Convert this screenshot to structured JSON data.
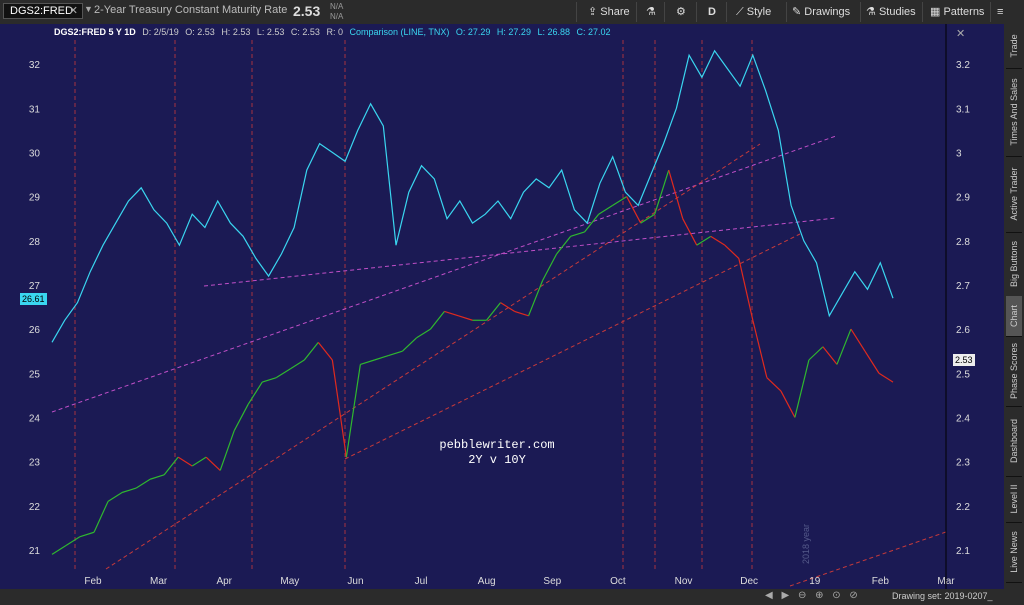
{
  "toolbar": {
    "symbol": "DGS2:FRED",
    "symbol_close": "✕",
    "description": "2-Year Treasury Constant Maturity Rate",
    "last": "2.53",
    "na1": "N/A",
    "na2": "N/A",
    "share": "Share",
    "period": "D",
    "style": "Style",
    "drawings": "Drawings",
    "studies": "Studies",
    "patterns": "Patterns"
  },
  "legend": {
    "main": "DGS2:FRED 5 Y 1D",
    "date": "D: 2/5/19",
    "o": "O: 2.53",
    "h": "H: 2.53",
    "l": "L: 2.53",
    "c": "C: 2.53",
    "r": "R: 0",
    "comp": "Comparison (LINE, TNX)",
    "co": "O: 27.29",
    "ch": "H: 27.29",
    "cl": "L: 26.88",
    "cc": "C: 27.02"
  },
  "colors": {
    "bg": "#1b1a54",
    "cyan": "#3ad6f0",
    "up": "#2fb82f",
    "down": "#e02a1e",
    "magenta": "#c04fc8",
    "redline": "#c83a3a"
  },
  "tags": {
    "left": "26.61",
    "right": "2.53"
  },
  "annotations": {
    "watermark1": "pebblewriter.com",
    "watermark2": "2Y v 10Y",
    "year_label": "2018 year"
  },
  "chart_data": {
    "type": "line",
    "left_axis": {
      "ticks": [
        "32",
        "31",
        "30",
        "29",
        "28",
        "27",
        "26",
        "25",
        "24",
        "23",
        "22",
        "21"
      ],
      "range": [
        20.5,
        32.5
      ]
    },
    "right_axis": {
      "ticks": [
        "3.2",
        "3.1",
        "3",
        "2.9",
        "2.8",
        "2.7",
        "2.6",
        "2.5",
        "2.4",
        "2.3",
        "2.2",
        "2.1"
      ],
      "range": [
        2.05,
        3.25
      ]
    },
    "x_labels": [
      "Feb",
      "Mar",
      "Apr",
      "May",
      "Jun",
      "Jul",
      "Aug",
      "Sep",
      "Oct",
      "Nov",
      "Dec",
      "19",
      "Feb",
      "Mar"
    ],
    "series": [
      {
        "name": "TNX",
        "axis": "left",
        "values": [
          25.7,
          26.2,
          26.6,
          27.3,
          27.9,
          28.4,
          28.9,
          29.2,
          28.7,
          28.4,
          27.9,
          28.6,
          28.3,
          28.9,
          28.4,
          28.1,
          27.6,
          27.2,
          27.7,
          28.3,
          29.6,
          30.2,
          30.0,
          29.8,
          30.5,
          31.1,
          30.6,
          27.9,
          29.1,
          29.7,
          29.4,
          28.5,
          28.9,
          28.4,
          28.6,
          28.9,
          28.5,
          29.1,
          29.4,
          29.2,
          29.6,
          28.7,
          28.4,
          29.3,
          29.9,
          29.1,
          28.8,
          29.5,
          30.2,
          31.0,
          32.2,
          31.7,
          32.3,
          31.9,
          31.5,
          32.2,
          31.4,
          30.5,
          28.8,
          28.0,
          27.5,
          26.3,
          26.8,
          27.3,
          26.9,
          27.5,
          26.7
        ]
      },
      {
        "name": "DGS2",
        "axis": "right",
        "values": [
          2.09,
          2.11,
          2.13,
          2.14,
          2.21,
          2.23,
          2.24,
          2.26,
          2.27,
          2.31,
          2.29,
          2.31,
          2.28,
          2.37,
          2.43,
          2.48,
          2.49,
          2.51,
          2.53,
          2.57,
          2.53,
          2.31,
          2.52,
          2.53,
          2.54,
          2.55,
          2.58,
          2.6,
          2.64,
          2.63,
          2.62,
          2.62,
          2.66,
          2.64,
          2.63,
          2.71,
          2.77,
          2.81,
          2.82,
          2.86,
          2.88,
          2.9,
          2.84,
          2.86,
          2.96,
          2.85,
          2.79,
          2.81,
          2.79,
          2.76,
          2.62,
          2.49,
          2.46,
          2.4,
          2.53,
          2.56,
          2.52,
          2.6,
          2.55,
          2.5,
          2.48
        ]
      }
    ]
  },
  "sidebar": {
    "tabs": [
      "Trade",
      "Times And Sales",
      "Active Trader",
      "Big Buttons",
      "Chart",
      "Phase Scores",
      "Dashboard",
      "Level II",
      "Live News"
    ]
  },
  "bottombar": {
    "drawing_set": "Drawing set: 2019-0207_"
  }
}
